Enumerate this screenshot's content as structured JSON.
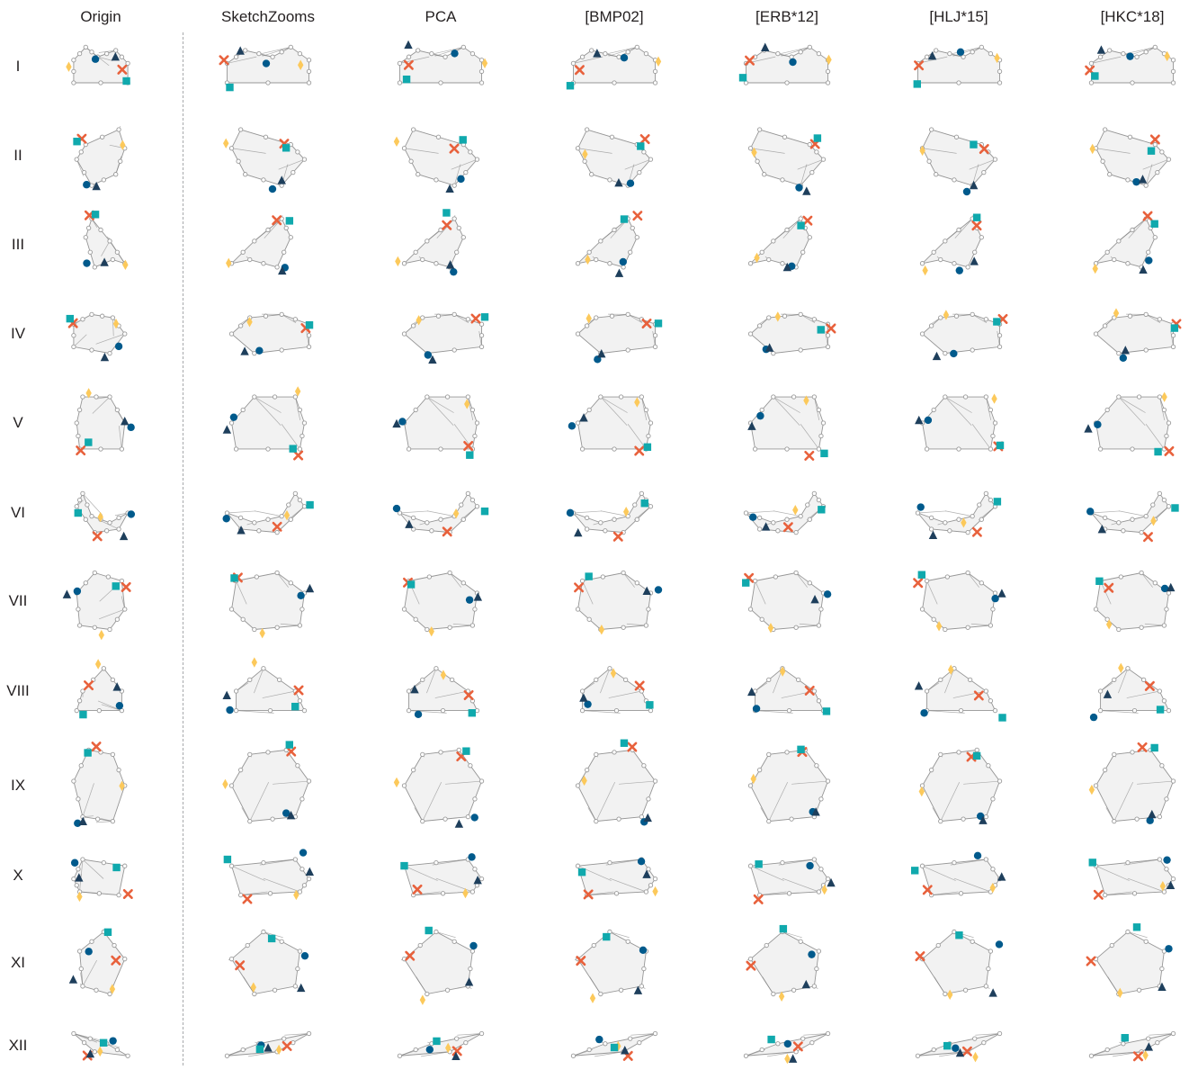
{
  "figure": {
    "columns": [
      "Origin",
      "SketchZooms",
      "PCA",
      "[BMP02]",
      "[ERB*12]",
      "[HLJ*15]",
      "[HKC*18]"
    ],
    "rows": [
      "I",
      "II",
      "III",
      "IV",
      "V",
      "VI",
      "VII",
      "VIII",
      "IX",
      "X",
      "XI",
      "XII"
    ]
  },
  "marker_colors": {
    "cross": "#e8613c",
    "circle": "#005a8c",
    "diamond": "#fcc95b",
    "square": "#10a9ad",
    "triangle": "#1e3f5c",
    "keypoint": "#9a9a9a",
    "sketch_stroke": "#7d7d7d",
    "sketch_shade": "#d9d9d9"
  },
  "marker_types": [
    "cross",
    "circle",
    "diamond",
    "square",
    "triangle"
  ]
}
